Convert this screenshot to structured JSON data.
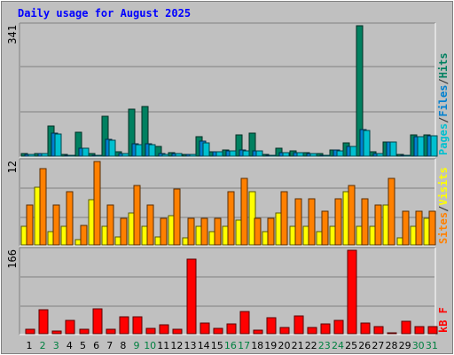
{
  "title": "Daily usage for August 2025",
  "chart_data": [
    {
      "type": "bar",
      "panel": "top",
      "ymax_label": "341",
      "ylim": [
        0,
        341
      ],
      "categories": [
        "1",
        "2",
        "3",
        "4",
        "5",
        "6",
        "7",
        "8",
        "9",
        "10",
        "11",
        "12",
        "13",
        "14",
        "15",
        "16",
        "17",
        "18",
        "19",
        "20",
        "21",
        "22",
        "23",
        "24",
        "25",
        "26",
        "27",
        "28",
        "29",
        "30",
        "31"
      ],
      "legend_text": [
        "Pages",
        "/",
        "Files",
        "/",
        "Hits"
      ],
      "legend_colors": [
        "#00c0d0",
        "#404040",
        "#0080d0",
        "#404040",
        "#008060"
      ],
      "series": [
        {
          "name": "Hits",
          "color": "#008060",
          "values": [
            6,
            8,
            80,
            5,
            63,
            6,
            104,
            12,
            123,
            130,
            26,
            9,
            5,
            50,
            12,
            16,
            55,
            61,
            4,
            20,
            14,
            9,
            7,
            16,
            35,
            341,
            12,
            38,
            5,
            55,
            56
          ]
        },
        {
          "name": "Files",
          "color": "#0080d0",
          "values": [
            4,
            6,
            60,
            3,
            22,
            3,
            43,
            8,
            33,
            33,
            6,
            8,
            4,
            40,
            12,
            14,
            16,
            14,
            3,
            10,
            10,
            7,
            2,
            16,
            26,
            70,
            8,
            38,
            3,
            51,
            53
          ]
        },
        {
          "name": "Pages",
          "color": "#00c0d0",
          "values": [
            4,
            6,
            58,
            3,
            20,
            2,
            42,
            7,
            30,
            31,
            4,
            7,
            4,
            35,
            12,
            14,
            15,
            14,
            3,
            9,
            9,
            7,
            2,
            15,
            25,
            67,
            7,
            36,
            2,
            50,
            53
          ]
        }
      ]
    },
    {
      "type": "bar",
      "panel": "middle",
      "ymax_label": "12",
      "ylim": [
        0,
        12
      ],
      "categories": [
        "1",
        "2",
        "3",
        "4",
        "5",
        "6",
        "7",
        "8",
        "9",
        "10",
        "11",
        "12",
        "13",
        "14",
        "15",
        "16",
        "17",
        "18",
        "19",
        "20",
        "21",
        "22",
        "23",
        "24",
        "25",
        "26",
        "27",
        "28",
        "29",
        "30",
        "31"
      ],
      "legend_text": [
        "Sites",
        "/",
        "Visits"
      ],
      "legend_colors": [
        "#ff8000",
        "#404040",
        "#ffff00"
      ],
      "series": [
        {
          "name": "Visits",
          "color": "#ffff00",
          "values": [
            2.7,
            8.3,
            1.9,
            2.7,
            0.8,
            6.5,
            2.7,
            1.1,
            4.6,
            2.7,
            1.2,
            4.2,
            1.0,
            2.7,
            1.9,
            2.7,
            3.6,
            7.6,
            1.9,
            4.6,
            2.7,
            2.7,
            1.9,
            2.7,
            7.6,
            2.7,
            2.7,
            5.8,
            1.0,
            2.7,
            3.8
          ]
        },
        {
          "name": "Sites",
          "color": "#ff8000",
          "values": [
            5.8,
            11.0,
            5.8,
            7.7,
            2.8,
            12.0,
            5.8,
            3.8,
            8.6,
            5.8,
            3.8,
            8.0,
            3.8,
            3.8,
            3.8,
            7.7,
            9.6,
            3.8,
            3.8,
            7.7,
            6.7,
            6.7,
            4.8,
            6.7,
            8.6,
            6.7,
            5.8,
            9.6,
            4.8,
            4.8,
            4.8
          ]
        }
      ]
    },
    {
      "type": "bar",
      "panel": "bottom",
      "ymax_label": "166",
      "ylim": [
        0,
        166
      ],
      "categories": [
        "1",
        "2",
        "3",
        "4",
        "5",
        "6",
        "7",
        "8",
        "9",
        "10",
        "11",
        "12",
        "13",
        "14",
        "15",
        "16",
        "17",
        "18",
        "19",
        "20",
        "21",
        "22",
        "23",
        "24",
        "25",
        "26",
        "27",
        "28",
        "29",
        "30",
        "31"
      ],
      "legend_text": [
        "kB F"
      ],
      "legend_colors": [
        "#ff0000"
      ],
      "series": [
        {
          "name": "kB F",
          "color": "#ff0000",
          "values": [
            9,
            47,
            6,
            27,
            8,
            49,
            9,
            33,
            33,
            11,
            18,
            9,
            148,
            22,
            11,
            20,
            45,
            7,
            32,
            13,
            36,
            12,
            20,
            27,
            166,
            21,
            15,
            2,
            25,
            14,
            14
          ]
        }
      ]
    }
  ],
  "x_labels": [
    "1",
    "2",
    "3",
    "4",
    "5",
    "6",
    "7",
    "8",
    "9",
    "10",
    "11",
    "12",
    "13",
    "14",
    "15",
    "16",
    "17",
    "18",
    "19",
    "20",
    "21",
    "22",
    "23",
    "24",
    "25",
    "26",
    "27",
    "28",
    "29",
    "30",
    "31"
  ],
  "x_label_colors": [
    "#000000",
    "#008040",
    "#008040",
    "#000000",
    "#000000",
    "#000000",
    "#000000",
    "#000000",
    "#008040",
    "#008040",
    "#000000",
    "#000000",
    "#000000",
    "#000000",
    "#000000",
    "#008040",
    "#008040",
    "#000000",
    "#000000",
    "#000000",
    "#000000",
    "#000000",
    "#008040",
    "#008040",
    "#000000",
    "#000000",
    "#000000",
    "#000000",
    "#000000",
    "#008040",
    "#008040"
  ],
  "colors": {
    "background": "#c0c0c0",
    "title": "#0000ff",
    "axis_label": "#000000"
  }
}
